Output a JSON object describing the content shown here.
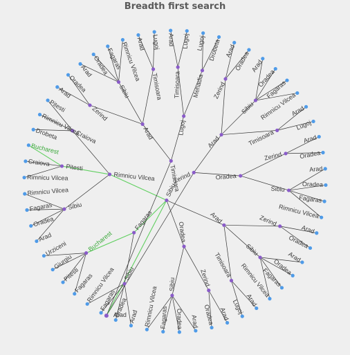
{
  "title": "Breadth first search",
  "colors": {
    "background": "#efefef",
    "edge": "#333333",
    "goal_edge": "#5fcf5f",
    "node_inner": "#8a5cc9",
    "node_leaf": "#4f9be8",
    "label": "#3a3a3a",
    "goal_label": "#3aa83a"
  },
  "root": "Arad",
  "goal": "Bucharest",
  "tree": {
    "label": "Arad",
    "children": [
      {
        "label": "Zerind",
        "children": [
          {
            "label": "Arad",
            "children": [
              {
                "label": "Zerind",
                "children": [
                  {
                    "label": "Arad"
                  },
                  {
                    "label": "Oradea"
                  }
                ]
              },
              {
                "label": "Sibiu",
                "children": [
                  {
                    "label": "Arad"
                  },
                  {
                    "label": "Oradea"
                  },
                  {
                    "label": "Fagaras"
                  },
                  {
                    "label": "Rimnicu Vilcea"
                  }
                ]
              },
              {
                "label": "Timisoara",
                "children": [
                  {
                    "label": "Arad"
                  },
                  {
                    "label": "Lugoj"
                  }
                ]
              }
            ]
          },
          {
            "label": "Oradea",
            "children": [
              {
                "label": "Zerind",
                "children": [
                  {
                    "label": "Arad"
                  },
                  {
                    "label": "Oradea"
                  }
                ]
              },
              {
                "label": "Sibiu",
                "children": [
                  {
                    "label": "Arad"
                  },
                  {
                    "label": "Oradea"
                  },
                  {
                    "label": "Fagaras"
                  },
                  {
                    "label": "Rimnicu Vilcea"
                  }
                ]
              }
            ]
          }
        ]
      },
      {
        "label": "Sibiu",
        "children": [
          {
            "label": "Arad",
            "children": [
              {
                "label": "Zerind",
                "children": [
                  {
                    "label": "Arad"
                  },
                  {
                    "label": "Oradea"
                  }
                ]
              },
              {
                "label": "Sibiu",
                "children": [
                  {
                    "label": "Arad"
                  },
                  {
                    "label": "Oradea"
                  },
                  {
                    "label": "Fagaras"
                  },
                  {
                    "label": "Rimnicu Vilcea"
                  }
                ]
              },
              {
                "label": "Timisoara",
                "children": [
                  {
                    "label": "Arad"
                  },
                  {
                    "label": "Lugoj"
                  }
                ]
              }
            ]
          },
          {
            "label": "Oradea",
            "children": [
              {
                "label": "Zerind",
                "children": [
                  {
                    "label": "Arad"
                  },
                  {
                    "label": "Oradea"
                  }
                ]
              },
              {
                "label": "Sibiu",
                "children": [
                  {
                    "label": "Arad"
                  },
                  {
                    "label": "Oradea"
                  },
                  {
                    "label": "Fagaras"
                  },
                  {
                    "label": "Rimnicu Vilcea"
                  }
                ]
              }
            ]
          },
          {
            "label": "Fagaras",
            "children": [
              {
                "label": "Sibiu",
                "children": [
                  {
                    "label": "Arad"
                  },
                  {
                    "label": "Oradea"
                  },
                  {
                    "label": "Fagaras"
                  },
                  {
                    "label": "Rimnicu Vilcea"
                  }
                ]
              },
              {
                "label": "Bucharest",
                "goal": true,
                "children": [
                  {
                    "label": "Fagaras"
                  },
                  {
                    "label": "Pitesti"
                  },
                  {
                    "label": "Giurgiu"
                  },
                  {
                    "label": "Urziceni"
                  }
                ]
              }
            ]
          },
          {
            "label": "Rimnicu Vilcea",
            "children": [
              {
                "label": "Sibiu",
                "children": [
                  {
                    "label": "Arad"
                  },
                  {
                    "label": "Oradea"
                  },
                  {
                    "label": "Fagaras"
                  },
                  {
                    "label": "Rimnicu Vilcea"
                  }
                ]
              },
              {
                "label": "Pitesti",
                "children": [
                  {
                    "label": "Rimnicu Vilcea"
                  },
                  {
                    "label": "Craiova"
                  },
                  {
                    "label": "Bucharest",
                    "goal": true
                  }
                ]
              },
              {
                "label": "Craiova",
                "children": [
                  {
                    "label": "Drobeta"
                  },
                  {
                    "label": "Rimnicu Vilcea"
                  },
                  {
                    "label": "Pitesti"
                  }
                ]
              }
            ]
          }
        ]
      },
      {
        "label": "Timisoara",
        "children": [
          {
            "label": "Arad",
            "children": [
              {
                "label": "Zerind",
                "children": [
                  {
                    "label": "Arad"
                  },
                  {
                    "label": "Oradea"
                  }
                ]
              },
              {
                "label": "Sibiu",
                "children": [
                  {
                    "label": "Arad"
                  },
                  {
                    "label": "Oradea"
                  },
                  {
                    "label": "Fagaras"
                  },
                  {
                    "label": "Rimnicu Vilcea"
                  }
                ]
              },
              {
                "label": "Timisoara",
                "children": [
                  {
                    "label": "Arad"
                  },
                  {
                    "label": "Lugoj"
                  }
                ]
              }
            ]
          },
          {
            "label": "Lugoj",
            "children": [
              {
                "label": "Timisoara",
                "children": [
                  {
                    "label": "Arad"
                  },
                  {
                    "label": "Lugoj"
                  }
                ]
              },
              {
                "label": "Mehadia",
                "children": [
                  {
                    "label": "Lugoj"
                  },
                  {
                    "label": "Drobeta"
                  }
                ]
              }
            ]
          }
        ]
      }
    ]
  }
}
